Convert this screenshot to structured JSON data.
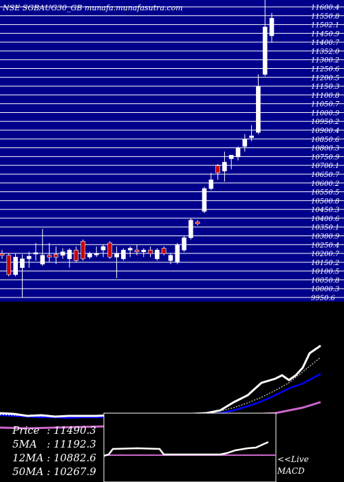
{
  "header": {
    "title": "NSE SGBAUG30_GB munafa.munafasutra.com"
  },
  "colors": {
    "background": "#000000",
    "price_panel_fill": "#00008b",
    "gridline": "#ffffff",
    "bull_candle": "#ffffff",
    "bear_candle": "#cc0000",
    "ma5": "#ffffff",
    "ma12": "#0000ff",
    "ma50": "#cc66cc",
    "macd_signal": "#cc66cc"
  },
  "stats": {
    "price_label": "Price",
    "price_value": ": 11490.3",
    "ma5_label": "5MA",
    "ma5_value": ": 11192.3",
    "ma12_label": "12MA",
    "ma12_value": ": 10882.6",
    "ma50_label": "50MA",
    "ma50_value": ": 10267.9"
  },
  "macd_panel": {
    "live_label": "<<Live",
    "macd_label": "MACD"
  },
  "chart_data": {
    "type": "candlestick",
    "title": "NSE SGBAUG30_GB munafa.munafasutra.com",
    "ylim": [
      9930,
      11600
    ],
    "grid": true,
    "y_ticks": [
      "11600.4",
      "11550.8",
      "11502.1",
      "11450.9",
      "11400.7",
      "11352.0",
      "11300.2",
      "11250.6",
      "11200.5",
      "11150.3",
      "11100.8",
      "11050.7",
      "11000.9",
      "10950.2",
      "10900.4",
      "10850.6",
      "10800.3",
      "10750.9",
      "10700.1",
      "10650.7",
      "10600.2",
      "10550.5",
      "10500.8",
      "10450.3",
      "10400.6",
      "10350.1",
      "10300.9",
      "10250.4",
      "10200.7",
      "10150.2",
      "10100.5",
      "10050.8",
      "10000.3",
      "9950.6"
    ],
    "candles": [
      {
        "o": 10180,
        "h": 10200,
        "l": 10150,
        "c": 10170
      },
      {
        "o": 10170,
        "h": 10180,
        "l": 10050,
        "c": 10060
      },
      {
        "o": 10060,
        "h": 10180,
        "l": 10050,
        "c": 10160
      },
      {
        "o": 10100,
        "h": 10175,
        "l": 9930,
        "c": 10150
      },
      {
        "o": 10150,
        "h": 10190,
        "l": 10100,
        "c": 10165
      },
      {
        "o": 10180,
        "h": 10240,
        "l": 10140,
        "c": 10185
      },
      {
        "o": 10120,
        "h": 10320,
        "l": 10110,
        "c": 10170
      },
      {
        "o": 10170,
        "h": 10240,
        "l": 10130,
        "c": 10160
      },
      {
        "o": 10175,
        "h": 10220,
        "l": 10120,
        "c": 10160
      },
      {
        "o": 10170,
        "h": 10210,
        "l": 10150,
        "c": 10190
      },
      {
        "o": 10150,
        "h": 10210,
        "l": 10100,
        "c": 10200
      },
      {
        "o": 10200,
        "h": 10220,
        "l": 10130,
        "c": 10140
      },
      {
        "o": 10250,
        "h": 10260,
        "l": 10140,
        "c": 10150
      },
      {
        "o": 10160,
        "h": 10190,
        "l": 10150,
        "c": 10180
      },
      {
        "o": 10175,
        "h": 10220,
        "l": 10160,
        "c": 10180
      },
      {
        "o": 10200,
        "h": 10230,
        "l": 10160,
        "c": 10220
      },
      {
        "o": 10240,
        "h": 10250,
        "l": 10150,
        "c": 10160
      },
      {
        "o": 10160,
        "h": 10220,
        "l": 10040,
        "c": 10180
      },
      {
        "o": 10150,
        "h": 10210,
        "l": 10140,
        "c": 10200
      },
      {
        "o": 10200,
        "h": 10220,
        "l": 10160,
        "c": 10210
      },
      {
        "o": 10200,
        "h": 10230,
        "l": 10170,
        "c": 10190
      },
      {
        "o": 10190,
        "h": 10210,
        "l": 10160,
        "c": 10200
      },
      {
        "o": 10200,
        "h": 10220,
        "l": 10160,
        "c": 10180
      },
      {
        "o": 10150,
        "h": 10210,
        "l": 10140,
        "c": 10200
      },
      {
        "o": 10210,
        "h": 10220,
        "l": 10170,
        "c": 10180
      },
      {
        "o": 10140,
        "h": 10180,
        "l": 10120,
        "c": 10170
      },
      {
        "o": 10130,
        "h": 10240,
        "l": 10120,
        "c": 10230
      },
      {
        "o": 10200,
        "h": 10280,
        "l": 10190,
        "c": 10270
      },
      {
        "o": 10270,
        "h": 10380,
        "l": 10260,
        "c": 10370
      },
      {
        "o": 10360,
        "h": 10370,
        "l": 10340,
        "c": 10350
      },
      {
        "o": 10420,
        "h": 10560,
        "l": 10410,
        "c": 10550
      },
      {
        "o": 10550,
        "h": 10640,
        "l": 10540,
        "c": 10600
      },
      {
        "o": 10680,
        "h": 10690,
        "l": 10600,
        "c": 10640
      },
      {
        "o": 10650,
        "h": 10760,
        "l": 10590,
        "c": 10700
      },
      {
        "o": 10720,
        "h": 10730,
        "l": 10660,
        "c": 10740
      },
      {
        "o": 10730,
        "h": 10790,
        "l": 10710,
        "c": 10780
      },
      {
        "o": 10790,
        "h": 10860,
        "l": 10760,
        "c": 10830
      },
      {
        "o": 10840,
        "h": 10910,
        "l": 10820,
        "c": 10850
      },
      {
        "o": 10870,
        "h": 11200,
        "l": 10860,
        "c": 11130
      },
      {
        "o": 11200,
        "h": 11700,
        "l": 11190,
        "c": 11470
      },
      {
        "o": 11420,
        "h": 11550,
        "l": 11380,
        "c": 11520
      }
    ]
  }
}
